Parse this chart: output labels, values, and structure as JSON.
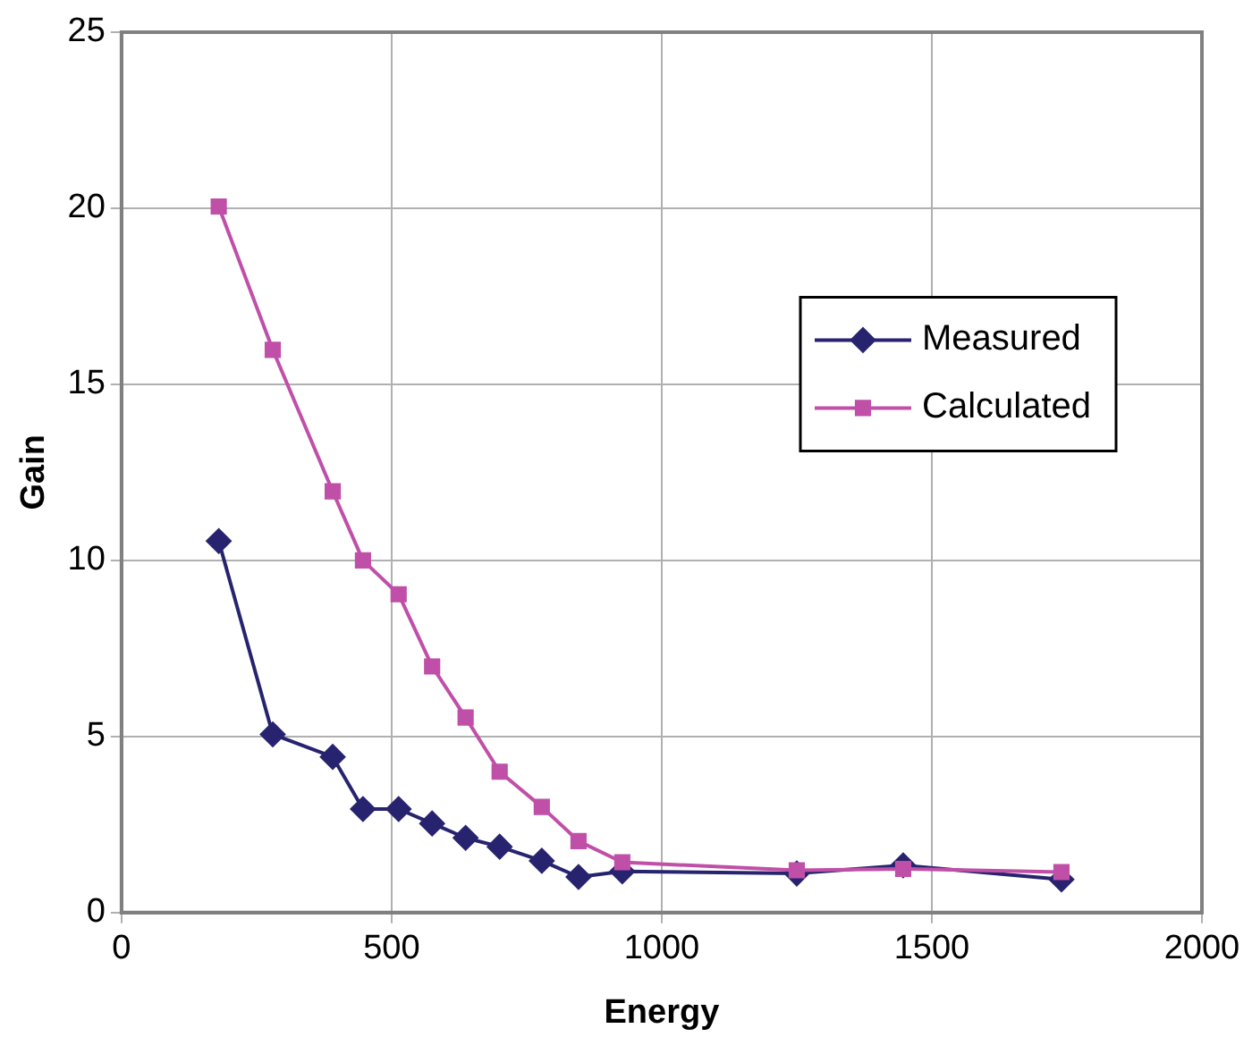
{
  "chart_data": {
    "type": "line",
    "xlabel": "Energy",
    "ylabel": "Gain",
    "xlim": [
      0,
      2000
    ],
    "xticks": [
      0,
      500,
      1000,
      1500,
      2000
    ],
    "ylim": [
      0,
      25
    ],
    "yticks": [
      0,
      5,
      10,
      15,
      20,
      25
    ],
    "grid": true,
    "legend": "right",
    "series": [
      {
        "name": "Measured",
        "color": "#27236f",
        "marker": "diamond",
        "x": [
          180,
          280,
          391,
          447,
          513,
          575,
          637,
          700,
          778,
          846,
          927,
          1250,
          1447,
          1740
        ],
        "values": [
          10.55,
          5.06,
          4.42,
          2.94,
          2.94,
          2.53,
          2.12,
          1.87,
          1.47,
          1.01,
          1.17,
          1.11,
          1.34,
          0.94
        ]
      },
      {
        "name": "Calculated",
        "color": "#c04fa8",
        "marker": "square",
        "x": [
          180,
          280,
          391,
          447,
          513,
          575,
          637,
          700,
          778,
          846,
          927,
          1250,
          1447,
          1740
        ],
        "values": [
          20.05,
          15.98,
          11.96,
          10.0,
          9.04,
          6.99,
          5.54,
          4.0,
          3.0,
          2.03,
          1.43,
          1.2,
          1.24,
          1.15
        ]
      }
    ]
  }
}
